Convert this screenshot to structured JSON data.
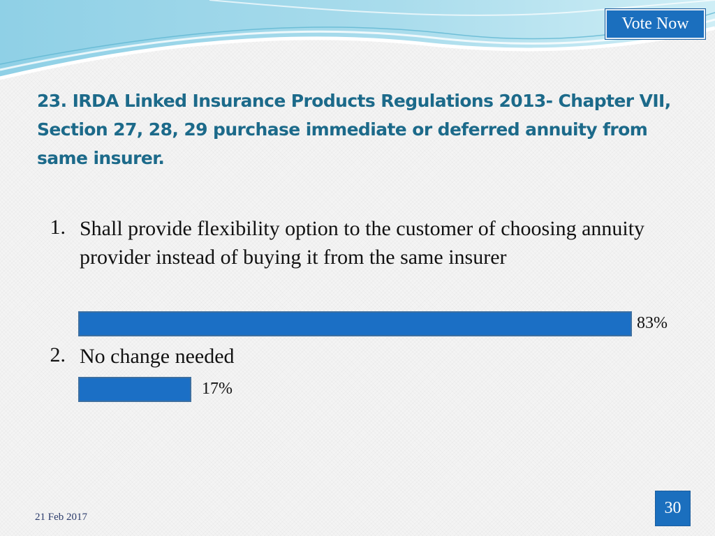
{
  "header": {
    "vote_label": "Vote Now"
  },
  "question": {
    "title": "23. IRDA Linked Insurance Products Regulations 2013- Chapter VII, Section 27, 28, 29 purchase immediate or deferred annuity from same insurer."
  },
  "options": [
    {
      "number": "1.",
      "text": "Shall provide flexibility option to the customer of choosing annuity provider instead of buying it from the same insurer",
      "percent_label": "83%",
      "percent": 83
    },
    {
      "number": "2.",
      "text": "No change needed",
      "percent_label": "17%",
      "percent": 17
    }
  ],
  "footer": {
    "date": "21 Feb 2017",
    "page_number": "30"
  },
  "colors": {
    "accent": "#1b6fc5",
    "title": "#1c6a8a",
    "wave": "#7ec8de"
  }
}
